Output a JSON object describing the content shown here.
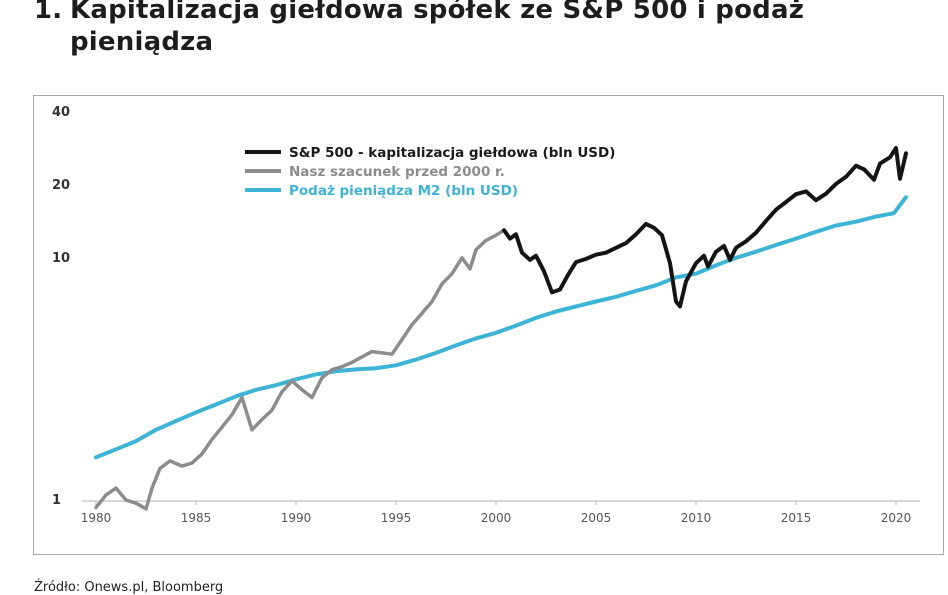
{
  "title": {
    "number": "1.",
    "line1": "Kapitalizacja giełdowa spółek ze S&P 500 i podaż",
    "line2": "pieniądza"
  },
  "source": "Źródło: Onews.pl, Bloomberg",
  "colors": {
    "sp500": "#141414",
    "estimate": "#8c8c8c",
    "m2": "#3db4d6",
    "axis": "#b0b0b0",
    "tick_text": "#555555"
  },
  "chart_data": {
    "type": "line",
    "title": "",
    "xlabel": "",
    "ylabel": "",
    "y_scale": "log",
    "ylim": [
      1,
      40
    ],
    "xlim": [
      1980,
      2020.5
    ],
    "grid": false,
    "legend_position": "top-center",
    "x_ticks": [
      "1980",
      "1985",
      "1990",
      "1995",
      "2000",
      "2005",
      "2010",
      "2015",
      "2020"
    ],
    "y_ticks": [
      "1",
      "10",
      "20",
      "40"
    ],
    "series": [
      {
        "name": "S&P 500 - kapitalizacja giełdowa (bln USD)",
        "color_key": "sp500",
        "points": [
          [
            2000.4,
            13.0
          ],
          [
            2000.7,
            12.0
          ],
          [
            2001.0,
            12.5
          ],
          [
            2001.3,
            10.5
          ],
          [
            2001.7,
            9.8
          ],
          [
            2002.0,
            10.2
          ],
          [
            2002.4,
            8.8
          ],
          [
            2002.8,
            7.2
          ],
          [
            2003.2,
            7.4
          ],
          [
            2003.6,
            8.5
          ],
          [
            2004.0,
            9.6
          ],
          [
            2004.5,
            9.9
          ],
          [
            2005.0,
            10.3
          ],
          [
            2005.5,
            10.5
          ],
          [
            2006.0,
            11.0
          ],
          [
            2006.5,
            11.5
          ],
          [
            2007.0,
            12.5
          ],
          [
            2007.5,
            13.8
          ],
          [
            2007.9,
            13.3
          ],
          [
            2008.3,
            12.4
          ],
          [
            2008.7,
            9.5
          ],
          [
            2009.0,
            6.6
          ],
          [
            2009.2,
            6.3
          ],
          [
            2009.5,
            8.0
          ],
          [
            2010.0,
            9.5
          ],
          [
            2010.4,
            10.2
          ],
          [
            2010.6,
            9.2
          ],
          [
            2011.0,
            10.6
          ],
          [
            2011.4,
            11.2
          ],
          [
            2011.7,
            9.8
          ],
          [
            2012.0,
            11.0
          ],
          [
            2012.5,
            11.7
          ],
          [
            2013.0,
            12.7
          ],
          [
            2013.5,
            14.2
          ],
          [
            2014.0,
            15.8
          ],
          [
            2014.5,
            17.0
          ],
          [
            2015.0,
            18.3
          ],
          [
            2015.5,
            18.8
          ],
          [
            2016.0,
            17.3
          ],
          [
            2016.5,
            18.4
          ],
          [
            2017.0,
            20.2
          ],
          [
            2017.5,
            21.6
          ],
          [
            2018.0,
            24.0
          ],
          [
            2018.4,
            23.2
          ],
          [
            2018.9,
            21.0
          ],
          [
            2019.2,
            24.5
          ],
          [
            2019.7,
            26.0
          ],
          [
            2020.0,
            28.4
          ],
          [
            2020.2,
            21.2
          ],
          [
            2020.5,
            27.0
          ]
        ]
      },
      {
        "name": "Nasz szacunek przed 2000 r.",
        "color_key": "estimate",
        "points": [
          [
            1980.0,
            0.93
          ],
          [
            1980.5,
            1.05
          ],
          [
            1981.0,
            1.12
          ],
          [
            1981.5,
            1.0
          ],
          [
            1982.0,
            0.97
          ],
          [
            1982.5,
            0.92
          ],
          [
            1982.8,
            1.12
          ],
          [
            1983.2,
            1.35
          ],
          [
            1983.7,
            1.45
          ],
          [
            1984.3,
            1.38
          ],
          [
            1984.8,
            1.42
          ],
          [
            1985.3,
            1.55
          ],
          [
            1985.8,
            1.78
          ],
          [
            1986.3,
            2.0
          ],
          [
            1986.8,
            2.25
          ],
          [
            1987.3,
            2.65
          ],
          [
            1987.8,
            1.95
          ],
          [
            1988.3,
            2.15
          ],
          [
            1988.8,
            2.35
          ],
          [
            1989.3,
            2.8
          ],
          [
            1989.8,
            3.1
          ],
          [
            1990.3,
            2.85
          ],
          [
            1990.8,
            2.65
          ],
          [
            1991.3,
            3.2
          ],
          [
            1991.8,
            3.45
          ],
          [
            1992.3,
            3.55
          ],
          [
            1992.8,
            3.7
          ],
          [
            1993.3,
            3.9
          ],
          [
            1993.8,
            4.1
          ],
          [
            1994.3,
            4.05
          ],
          [
            1994.8,
            4.0
          ],
          [
            1995.3,
            4.6
          ],
          [
            1995.8,
            5.3
          ],
          [
            1996.3,
            5.9
          ],
          [
            1996.8,
            6.6
          ],
          [
            1997.3,
            7.8
          ],
          [
            1997.8,
            8.6
          ],
          [
            1998.3,
            10.0
          ],
          [
            1998.7,
            9.0
          ],
          [
            1999.0,
            10.8
          ],
          [
            1999.5,
            11.8
          ],
          [
            2000.0,
            12.4
          ],
          [
            2000.4,
            13.0
          ]
        ]
      },
      {
        "name": "Podaż pieniądza M2 (bln USD)",
        "color_key": "m2",
        "points": [
          [
            1980.0,
            1.5
          ],
          [
            1981.0,
            1.62
          ],
          [
            1982.0,
            1.75
          ],
          [
            1983.0,
            1.95
          ],
          [
            1984.0,
            2.12
          ],
          [
            1985.0,
            2.3
          ],
          [
            1986.0,
            2.48
          ],
          [
            1987.0,
            2.68
          ],
          [
            1988.0,
            2.85
          ],
          [
            1989.0,
            2.98
          ],
          [
            1990.0,
            3.15
          ],
          [
            1991.0,
            3.3
          ],
          [
            1992.0,
            3.4
          ],
          [
            1993.0,
            3.46
          ],
          [
            1994.0,
            3.5
          ],
          [
            1995.0,
            3.6
          ],
          [
            1996.0,
            3.8
          ],
          [
            1997.0,
            4.05
          ],
          [
            1998.0,
            4.35
          ],
          [
            1999.0,
            4.65
          ],
          [
            2000.0,
            4.9
          ],
          [
            2001.0,
            5.25
          ],
          [
            2002.0,
            5.65
          ],
          [
            2003.0,
            6.0
          ],
          [
            2004.0,
            6.3
          ],
          [
            2005.0,
            6.6
          ],
          [
            2006.0,
            6.9
          ],
          [
            2007.0,
            7.3
          ],
          [
            2008.0,
            7.7
          ],
          [
            2009.0,
            8.3
          ],
          [
            2010.0,
            8.6
          ],
          [
            2011.0,
            9.3
          ],
          [
            2012.0,
            10.0
          ],
          [
            2013.0,
            10.6
          ],
          [
            2014.0,
            11.3
          ],
          [
            2015.0,
            12.0
          ],
          [
            2016.0,
            12.8
          ],
          [
            2017.0,
            13.6
          ],
          [
            2018.0,
            14.1
          ],
          [
            2019.0,
            14.8
          ],
          [
            2019.9,
            15.3
          ],
          [
            2020.2,
            16.5
          ],
          [
            2020.5,
            17.8
          ]
        ]
      }
    ]
  }
}
